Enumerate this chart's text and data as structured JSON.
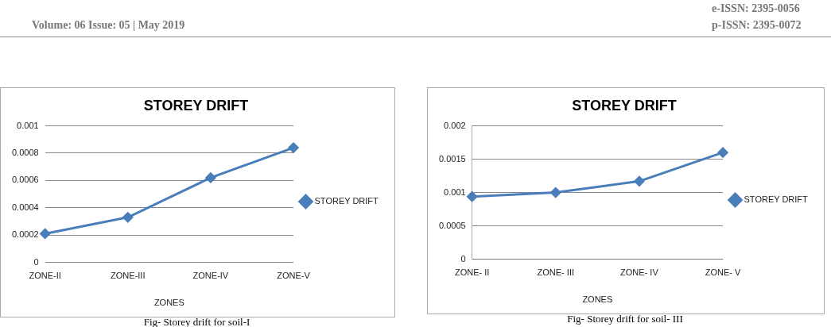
{
  "chart_data": [
    {
      "type": "line",
      "title": "STOREY DRIFT",
      "xlabel": "ZONES",
      "categories": [
        "ZONE-II",
        "ZONE-III",
        "ZONE-IV",
        "ZONE-V"
      ],
      "series": [
        {
          "name": "STOREY DRIFT",
          "color": "#4a7ebb",
          "values": [
            0.00021,
            0.00033,
            0.00062,
            0.00084
          ]
        }
      ],
      "ylim": [
        0,
        0.001
      ],
      "yticks": [
        0,
        0.0002,
        0.0004,
        0.0006,
        0.0008,
        0.001
      ],
      "grid": "y",
      "legend": "right",
      "marker": "diamond",
      "line_style": "solid",
      "annotations": [
        "Volume: 06 Issue: 05 | May 2019",
        "e-ISSN: 2395-0056",
        "p-ISSN: 2395-0072",
        "Fig- Storey drift for soil-I"
      ]
    },
    {
      "type": "line",
      "title": "STOREY DRIFT",
      "xlabel": "ZONES",
      "categories": [
        "ZONE- II",
        "ZONE- III",
        "ZONE- IV",
        "ZONE- V"
      ],
      "series": [
        {
          "name": "STOREY DRIFT",
          "color": "#4a7ebb",
          "values": [
            0.00094,
            0.001,
            0.00117,
            0.0016
          ]
        }
      ],
      "ylim": [
        0,
        0.002
      ],
      "yticks": [
        0,
        0.0005,
        0.001,
        0.0015,
        0.002
      ],
      "grid": "y",
      "legend": "right",
      "marker": "diamond",
      "line_style": "solid",
      "annotations": [
        "Fig- Storey drift for soil- III"
      ]
    }
  ]
}
